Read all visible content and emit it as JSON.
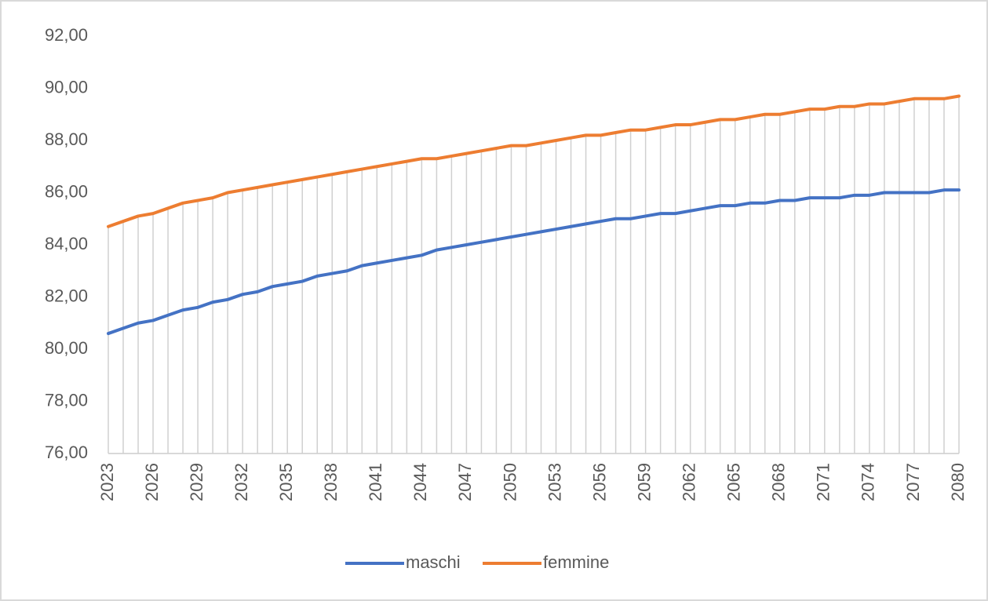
{
  "chart_data": {
    "type": "line",
    "categories": [
      "2023",
      null,
      null,
      "2026",
      null,
      null,
      "2029",
      null,
      null,
      "2032",
      null,
      null,
      "2035",
      null,
      null,
      "2038",
      null,
      null,
      "2041",
      null,
      null,
      "2044",
      null,
      null,
      "2047",
      null,
      null,
      "2050",
      null,
      null,
      "2053",
      null,
      null,
      "2056",
      null,
      null,
      "2059",
      null,
      null,
      "2062",
      null,
      null,
      "2065",
      null,
      null,
      "2068",
      null,
      null,
      "2071",
      null,
      null,
      "2074",
      null,
      null,
      "2077",
      null,
      null,
      "2080"
    ],
    "series": [
      {
        "name": "maschi",
        "color": "#4472c4",
        "values": [
          80.6,
          80.8,
          81.0,
          81.1,
          81.3,
          81.5,
          81.6,
          81.8,
          81.9,
          82.1,
          82.2,
          82.4,
          82.5,
          82.6,
          82.8,
          82.9,
          83.0,
          83.2,
          83.3,
          83.4,
          83.5,
          83.6,
          83.8,
          83.9,
          84.0,
          84.1,
          84.2,
          84.3,
          84.4,
          84.5,
          84.6,
          84.7,
          84.8,
          84.9,
          85.0,
          85.0,
          85.1,
          85.2,
          85.2,
          85.3,
          85.4,
          85.5,
          85.5,
          85.6,
          85.6,
          85.7,
          85.7,
          85.8,
          85.8,
          85.8,
          85.9,
          85.9,
          86.0,
          86.0,
          86.0,
          86.0,
          86.1,
          86.1
        ]
      },
      {
        "name": "femmine",
        "color": "#ed7d31",
        "values": [
          84.7,
          84.9,
          85.1,
          85.2,
          85.4,
          85.6,
          85.7,
          85.8,
          86.0,
          86.1,
          86.2,
          86.3,
          86.4,
          86.5,
          86.6,
          86.7,
          86.8,
          86.9,
          87.0,
          87.1,
          87.2,
          87.3,
          87.3,
          87.4,
          87.5,
          87.6,
          87.7,
          87.8,
          87.8,
          87.9,
          88.0,
          88.1,
          88.2,
          88.2,
          88.3,
          88.4,
          88.4,
          88.5,
          88.6,
          88.6,
          88.7,
          88.8,
          88.8,
          88.9,
          89.0,
          89.0,
          89.1,
          89.2,
          89.2,
          89.3,
          89.3,
          89.4,
          89.4,
          89.5,
          89.6,
          89.6,
          89.6,
          89.7
        ]
      }
    ],
    "ylim": [
      76,
      92
    ],
    "yticks": [
      {
        "value": 76,
        "label": "76,00"
      },
      {
        "value": 78,
        "label": "78,00"
      },
      {
        "value": 80,
        "label": "80,00"
      },
      {
        "value": 82,
        "label": "82,00"
      },
      {
        "value": 84,
        "label": "84,00"
      },
      {
        "value": 86,
        "label": "86,00"
      },
      {
        "value": 88,
        "label": "88,00"
      },
      {
        "value": 90,
        "label": "90,00"
      },
      {
        "value": 92,
        "label": "92,00"
      }
    ],
    "drop_lines": true,
    "legend": "bottom"
  }
}
